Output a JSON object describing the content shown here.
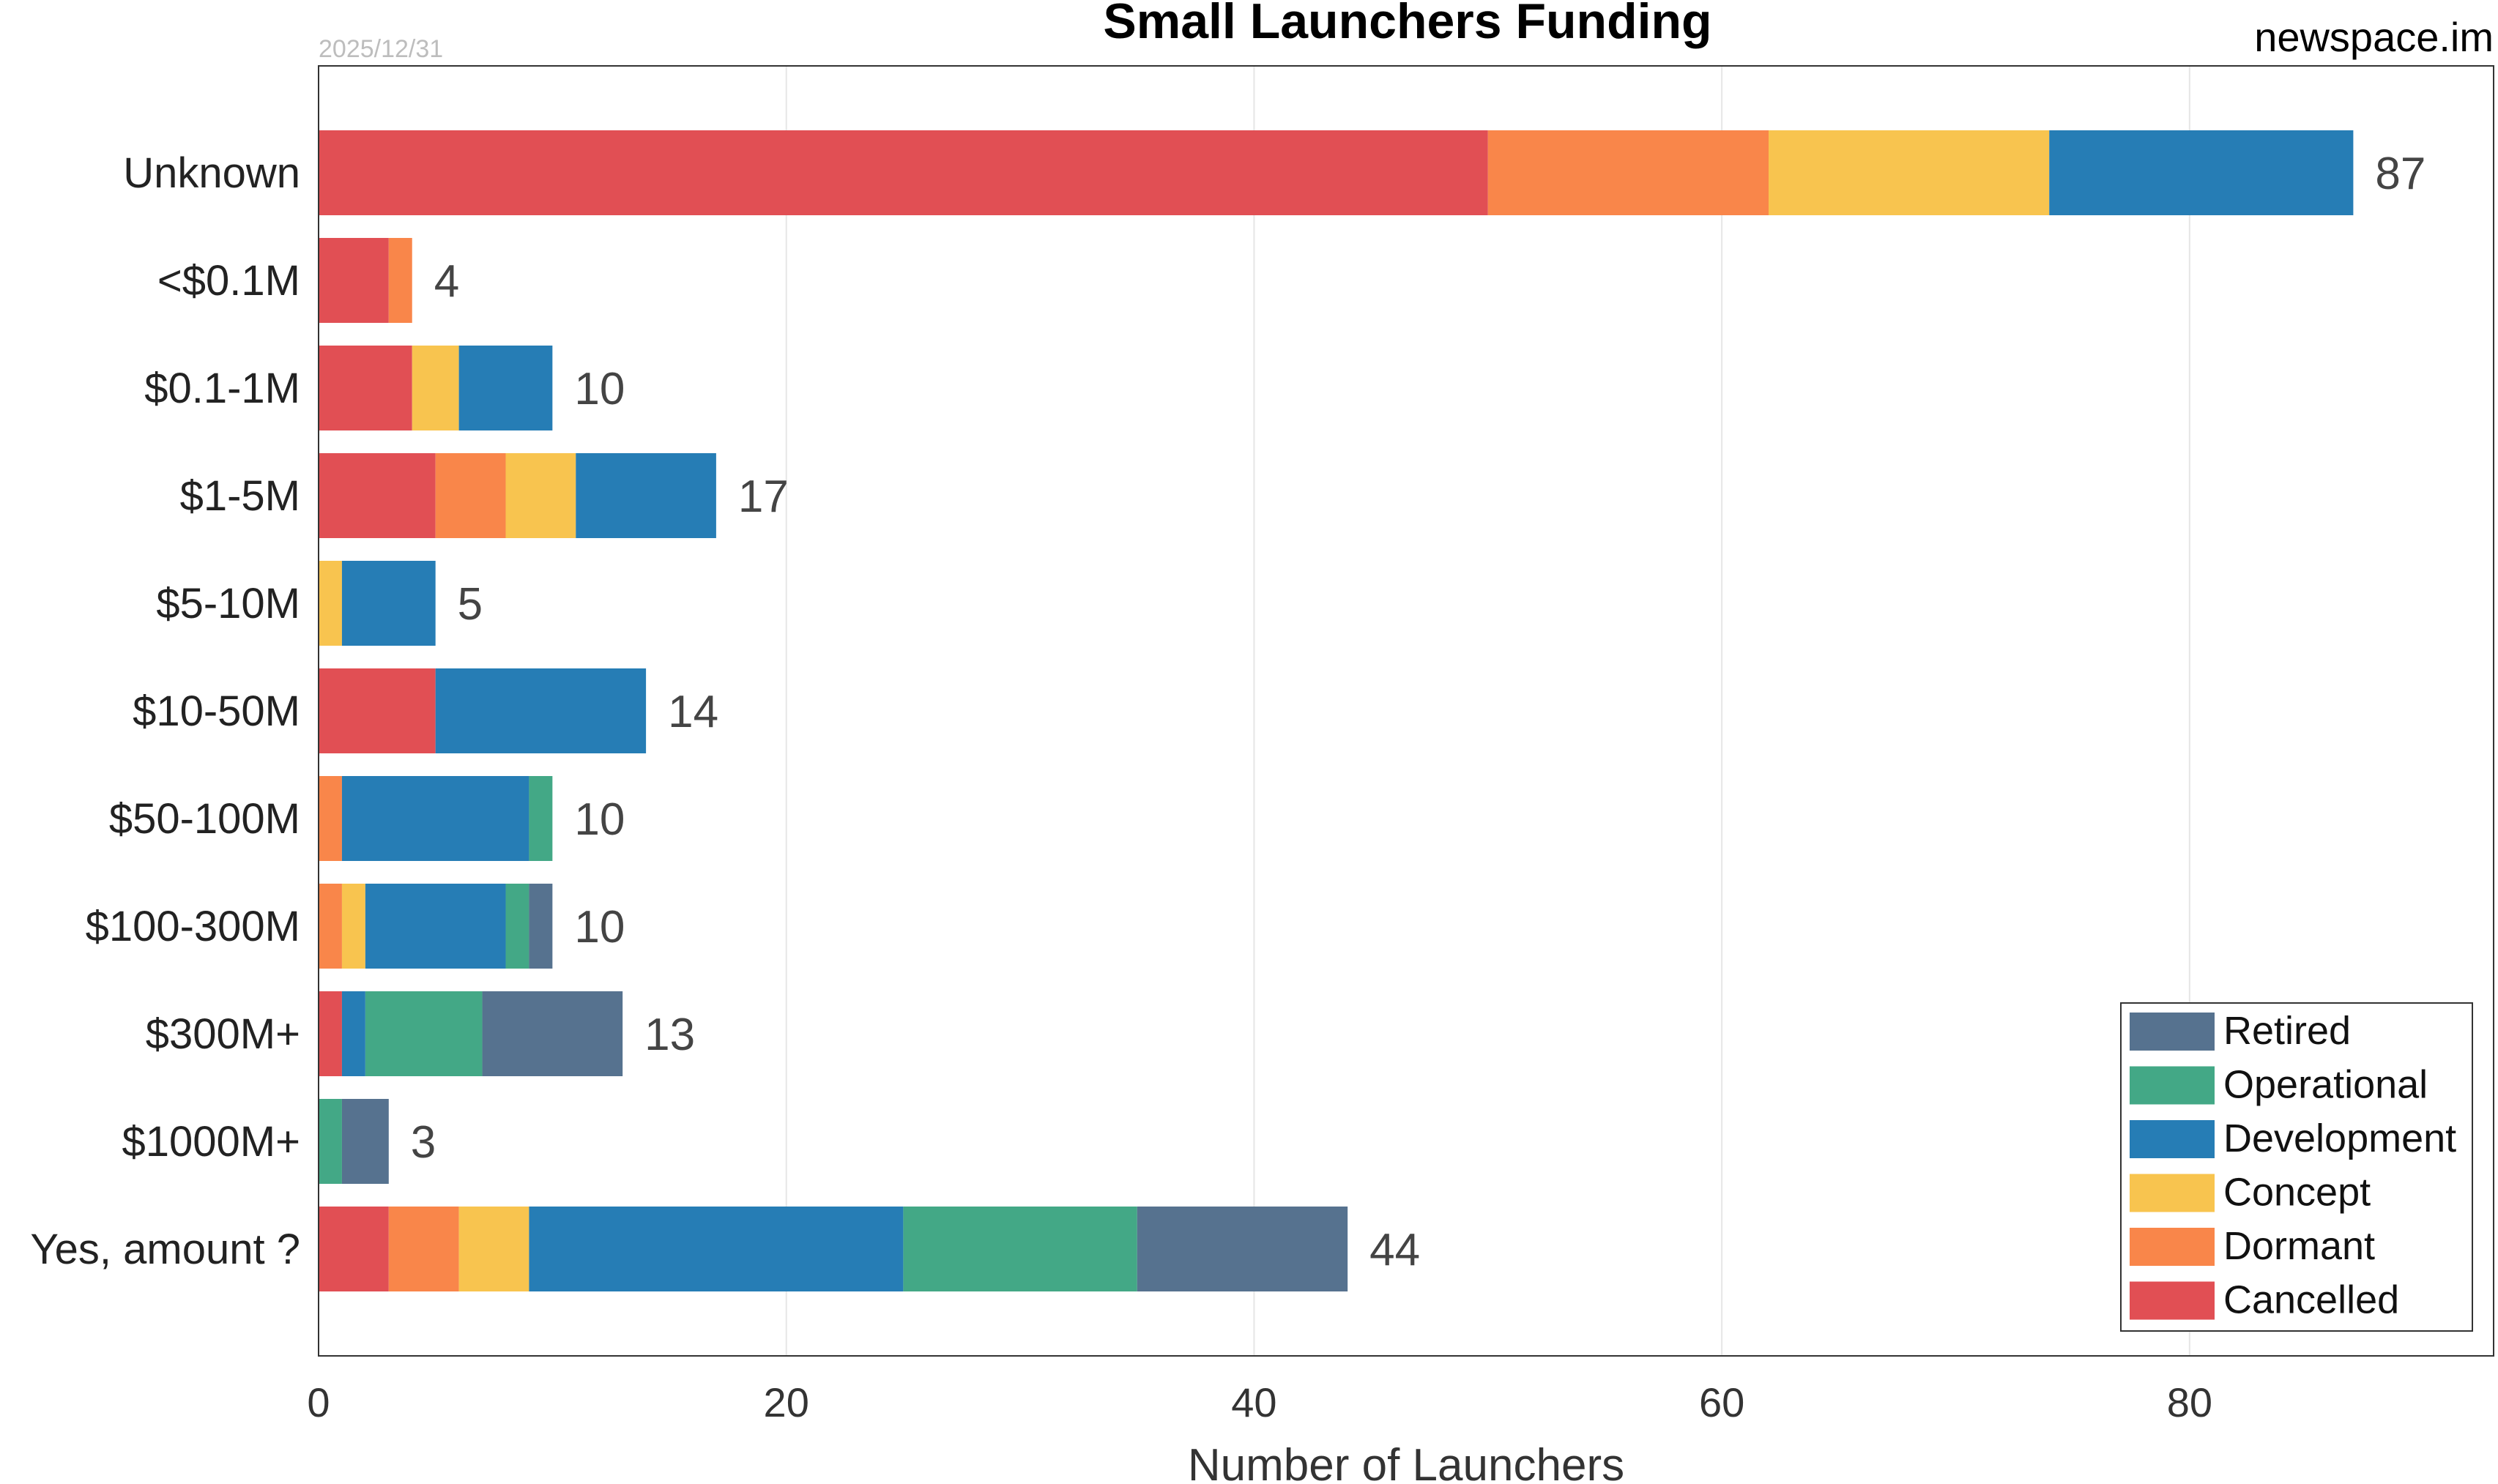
{
  "date_stamp": "2025/12/31",
  "source": "newspace.im",
  "colors": {
    "Retired": "#56728f",
    "Operational": "#43a886",
    "Development": "#267db5",
    "Concept": "#f8c44f",
    "Dormant": "#f9864a",
    "Cancelled": "#e14f54",
    "total_label": "#444444",
    "grid": "#e6e6e6",
    "axis": "#333333"
  },
  "chart_data": {
    "type": "bar",
    "orientation": "horizontal",
    "stacked": true,
    "title": "Small Launchers Funding",
    "xlabel": "Number of Launchers",
    "ylabel": "",
    "xlim": [
      0,
      93
    ],
    "x_ticks": [
      0,
      20,
      40,
      60,
      80
    ],
    "grid": "vertical",
    "legend_position": "bottom-right",
    "legend_order": [
      "Retired",
      "Operational",
      "Development",
      "Concept",
      "Dormant",
      "Cancelled"
    ],
    "categories": [
      "Unknown",
      "<$0.1M",
      "$0.1-1M",
      "$1-5M",
      "$5-10M",
      "$10-50M",
      "$50-100M",
      "$100-300M",
      "$300M+",
      "$1000M+",
      "Yes, amount ?"
    ],
    "series": [
      {
        "name": "Cancelled",
        "values": [
          50,
          3,
          4,
          5,
          0,
          5,
          0,
          0,
          1,
          0,
          3
        ]
      },
      {
        "name": "Dormant",
        "values": [
          12,
          1,
          0,
          3,
          0,
          0,
          1,
          1,
          0,
          0,
          3
        ]
      },
      {
        "name": "Concept",
        "values": [
          12,
          0,
          2,
          3,
          1,
          0,
          0,
          1,
          0,
          0,
          3
        ]
      },
      {
        "name": "Development",
        "values": [
          13,
          0,
          4,
          6,
          4,
          9,
          8,
          6,
          1,
          0,
          16
        ]
      },
      {
        "name": "Operational",
        "values": [
          0,
          0,
          0,
          0,
          0,
          0,
          1,
          1,
          5,
          1,
          10
        ]
      },
      {
        "name": "Retired",
        "values": [
          0,
          0,
          0,
          0,
          0,
          0,
          0,
          1,
          6,
          2,
          9
        ]
      }
    ],
    "totals": [
      87,
      4,
      10,
      17,
      5,
      14,
      10,
      10,
      13,
      3,
      44
    ]
  }
}
